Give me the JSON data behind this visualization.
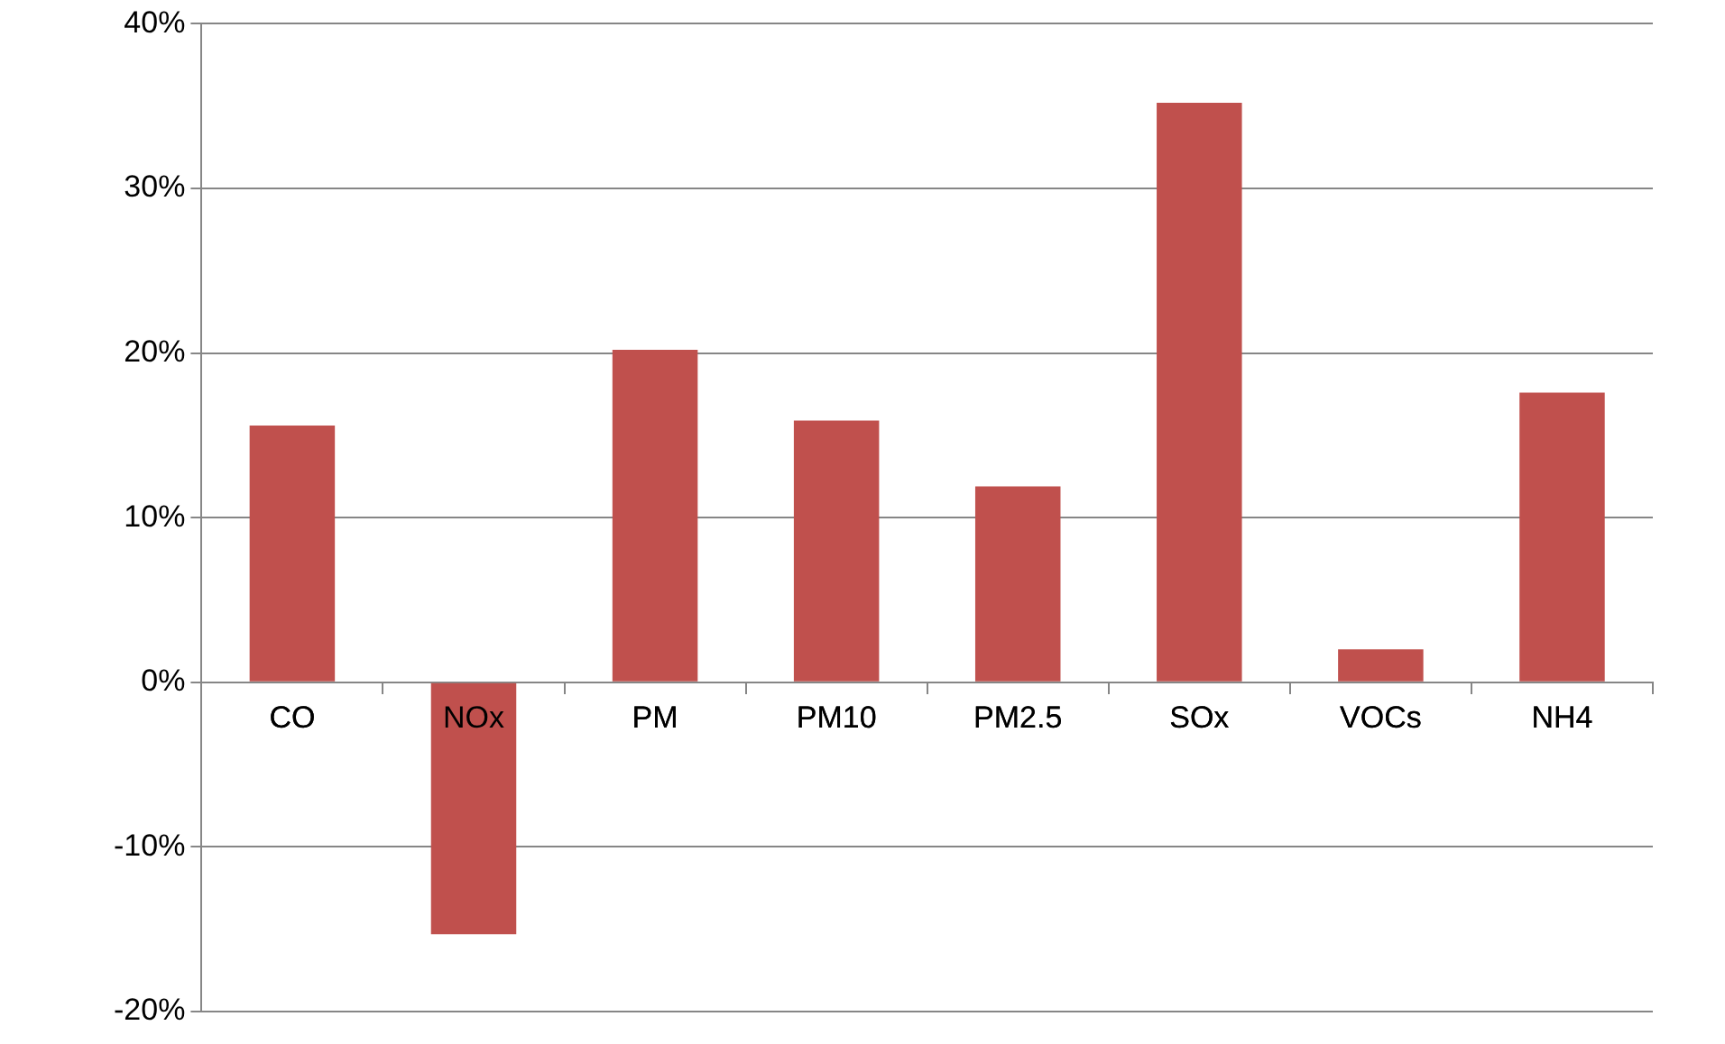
{
  "chart_data": {
    "type": "bar",
    "categories": [
      "CO",
      "NOx",
      "PM",
      "PM10",
      "PM2.5",
      "SOx",
      "VOCs",
      "NH4"
    ],
    "values": [
      15.6,
      -15.3,
      20.2,
      15.9,
      11.9,
      35.2,
      2.0,
      17.6
    ],
    "color": "#c0504d",
    "ylim": [
      -20,
      40
    ],
    "yticks": [
      {
        "value": -20,
        "label": "-20%"
      },
      {
        "value": -10,
        "label": "-10%"
      },
      {
        "value": 0,
        "label": "0%"
      },
      {
        "value": 10,
        "label": "10%"
      },
      {
        "value": 20,
        "label": "20%"
      },
      {
        "value": 30,
        "label": "30%"
      },
      {
        "value": 40,
        "label": "40%"
      }
    ],
    "grid": "y",
    "legend": false
  }
}
